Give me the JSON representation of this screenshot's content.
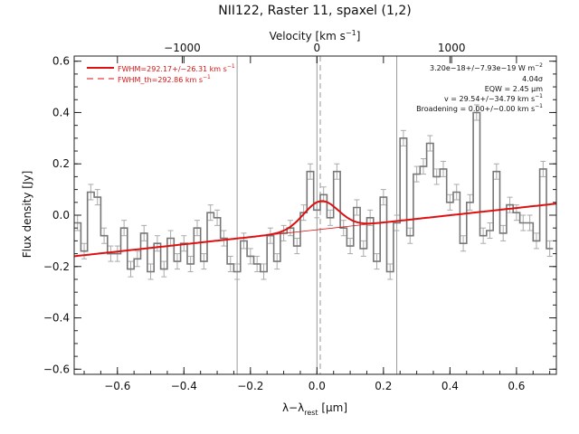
{
  "chart_data": {
    "type": "line",
    "title": "NII122, Raster 11, spaxel (1,2)",
    "xlabel_bottom": "λ−λ",
    "xlabel_bottom_sub": "rest",
    "xlabel_bottom_unit": " [μm]",
    "xlabel_top": "Velocity [km s",
    "xlabel_top_sup": "−1",
    "xlabel_top_close": "]",
    "ylabel": "Flux density [Jy]",
    "xlim": [
      -0.73,
      0.72
    ],
    "ylim": [
      -0.62,
      0.62
    ],
    "xticks": [
      -0.6,
      -0.4,
      -0.2,
      0.0,
      0.2,
      0.4,
      0.6
    ],
    "xtick_labels": [
      "−0.6",
      "−0.4",
      "−0.2",
      "0.0",
      "0.2",
      "0.4",
      "0.6"
    ],
    "yticks": [
      -0.6,
      -0.4,
      -0.2,
      0.0,
      0.2,
      0.4,
      0.6
    ],
    "ytick_labels": [
      "−0.6",
      "−0.4",
      "−0.2",
      "0.0",
      "0.2",
      "0.4",
      "0.6"
    ],
    "top_ticks_velocity": [
      -1000,
      0,
      1000
    ],
    "top_tick_labels": [
      "−1000",
      "0",
      "1000"
    ],
    "vlines_solid": [
      -0.24,
      0.0,
      0.24
    ],
    "vline_dashed": 0.01,
    "legend": [
      {
        "label": "FWHM=292.17+/−26.31 km s",
        "sup": "−1",
        "style": "solid",
        "color": "#dd1111"
      },
      {
        "label": "FWHM_th=292.86 km s",
        "sup": "−1",
        "style": "dashed",
        "color": "#dd1111"
      }
    ],
    "annotations": [
      {
        "text": "3.20e−18+/−7.93e−19 W m",
        "sup": "−2"
      },
      {
        "text": "4.04σ",
        "sup": ""
      },
      {
        "text": "EQW = 2.45 μm",
        "sup": ""
      },
      {
        "text": "v = 29.54+/−34.79 km s",
        "sup": "−1"
      },
      {
        "text": "Broadening = 0.00+/−0.00 km s",
        "sup": "−1"
      }
    ],
    "spectrum": {
      "name": "data",
      "color": "#777777",
      "x": [
        -0.72,
        -0.7,
        -0.68,
        -0.66,
        -0.64,
        -0.62,
        -0.6,
        -0.58,
        -0.56,
        -0.54,
        -0.52,
        -0.5,
        -0.48,
        -0.46,
        -0.44,
        -0.42,
        -0.4,
        -0.38,
        -0.36,
        -0.34,
        -0.32,
        -0.3,
        -0.28,
        -0.26,
        -0.24,
        -0.22,
        -0.2,
        -0.18,
        -0.16,
        -0.14,
        -0.12,
        -0.1,
        -0.08,
        -0.06,
        -0.04,
        -0.02,
        0.0,
        0.02,
        0.04,
        0.06,
        0.08,
        0.1,
        0.12,
        0.14,
        0.16,
        0.18,
        0.2,
        0.22,
        0.24,
        0.26,
        0.28,
        0.3,
        0.32,
        0.34,
        0.36,
        0.38,
        0.4,
        0.42,
        0.44,
        0.46,
        0.48,
        0.5,
        0.52,
        0.54,
        0.56,
        0.58,
        0.6,
        0.62,
        0.64,
        0.66,
        0.68,
        0.7
      ],
      "y": [
        -0.03,
        -0.14,
        0.09,
        0.07,
        -0.08,
        -0.15,
        -0.15,
        -0.05,
        -0.21,
        -0.17,
        -0.07,
        -0.22,
        -0.11,
        -0.21,
        -0.09,
        -0.18,
        -0.11,
        -0.19,
        -0.05,
        -0.18,
        0.01,
        -0.01,
        -0.09,
        -0.19,
        -0.22,
        -0.1,
        -0.16,
        -0.19,
        -0.22,
        -0.08,
        -0.18,
        -0.07,
        -0.05,
        -0.12,
        0.01,
        0.17,
        0.02,
        0.08,
        -0.01,
        0.17,
        -0.05,
        -0.12,
        0.03,
        -0.13,
        -0.01,
        -0.18,
        0.07,
        -0.22,
        -0.03,
        0.3,
        -0.08,
        0.16,
        0.19,
        0.28,
        0.15,
        0.18,
        0.05,
        0.09,
        -0.11,
        0.05,
        0.4,
        -0.08,
        -0.06,
        0.17,
        -0.07,
        0.04,
        0.01,
        -0.03,
        -0.03,
        -0.1,
        0.18,
        -0.13
      ],
      "yerr": 0.03
    },
    "fit_continuum": {
      "name": "continuum",
      "color": "#dd1111",
      "y_at_xmin": -0.16,
      "y_at_xmax": 0.045
    },
    "fit_line": {
      "name": "gaussian fit",
      "color": "#dd1111",
      "center": 0.012,
      "sigma": 0.052,
      "peak": 0.11
    }
  }
}
